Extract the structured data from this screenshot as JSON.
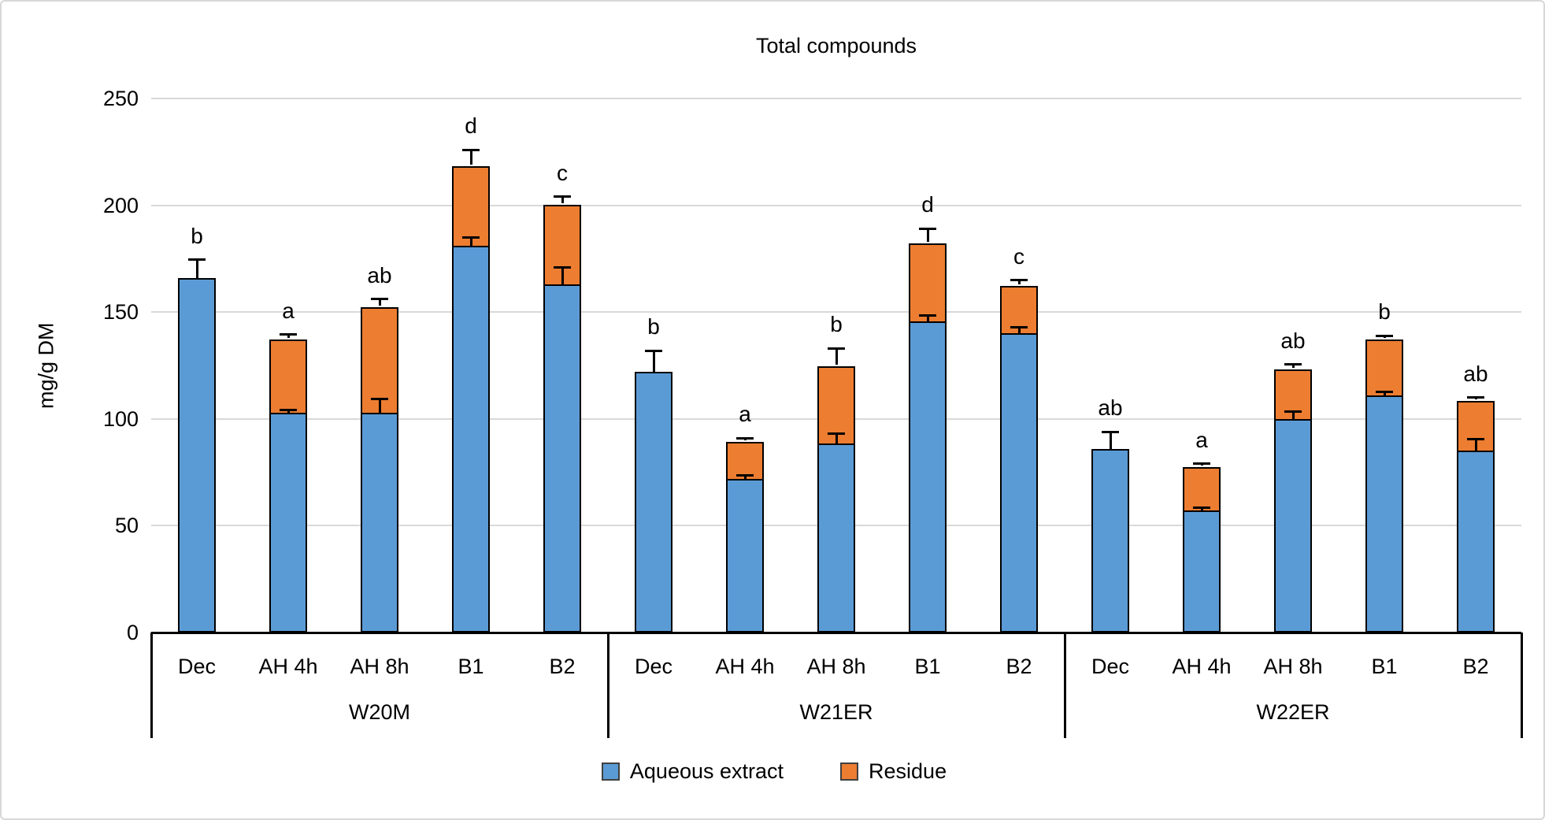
{
  "chart_data": {
    "type": "bar",
    "stacked": true,
    "title": "Total compounds",
    "ylabel": "mg/g DM",
    "ylim": [
      0,
      250
    ],
    "yticks": [
      0,
      50,
      100,
      150,
      200,
      250
    ],
    "grid": true,
    "legend_position": "bottom",
    "series_names": [
      "Aqueous extract",
      "Residue"
    ],
    "colors": {
      "aqueous_extract": "#5B9BD5",
      "residue": "#ED7D31",
      "gridline": "#D9D9D9",
      "axis": "#000000"
    },
    "groups": [
      {
        "label": "W20M",
        "bars": [
          {
            "label": "Dec",
            "letter": "b",
            "aqueous_extract": 166,
            "residue": 0,
            "aqueous_err": 8.5,
            "residue_err": null
          },
          {
            "label": "AH 4h",
            "letter": "a",
            "aqueous_extract": 103,
            "residue": 35,
            "aqueous_err": 1,
            "residue_err": 1.5
          },
          {
            "label": "AH 8h",
            "letter": "ab",
            "aqueous_extract": 103,
            "residue": 50,
            "aqueous_err": 6.5,
            "residue_err": 3
          },
          {
            "label": "B1",
            "letter": "d",
            "aqueous_extract": 181,
            "residue": 38,
            "aqueous_err": 4,
            "residue_err": 7
          },
          {
            "label": "B2",
            "letter": "c",
            "aqueous_extract": 163,
            "residue": 38,
            "aqueous_err": 8,
            "residue_err": 3
          }
        ]
      },
      {
        "label": "W21ER",
        "bars": [
          {
            "label": "Dec",
            "letter": "b",
            "aqueous_extract": 122,
            "residue": 0,
            "aqueous_err": 10,
            "residue_err": null
          },
          {
            "label": "AH 4h",
            "letter": "a",
            "aqueous_extract": 72,
            "residue": 18,
            "aqueous_err": 1.5,
            "residue_err": 1
          },
          {
            "label": "AH 8h",
            "letter": "b",
            "aqueous_extract": 88.5,
            "residue": 37,
            "aqueous_err": 4.5,
            "residue_err": 7.5
          },
          {
            "label": "B1",
            "letter": "d",
            "aqueous_extract": 145.5,
            "residue": 37.5,
            "aqueous_err": 3,
            "residue_err": 6
          },
          {
            "label": "B2",
            "letter": "c",
            "aqueous_extract": 140,
            "residue": 23,
            "aqueous_err": 3,
            "residue_err": 2
          }
        ]
      },
      {
        "label": "W22ER",
        "bars": [
          {
            "label": "Dec",
            "letter": "ab",
            "aqueous_extract": 86,
            "residue": 0,
            "aqueous_err": 8,
            "residue_err": null
          },
          {
            "label": "AH 4h",
            "letter": "a",
            "aqueous_extract": 57,
            "residue": 21,
            "aqueous_err": 1.5,
            "residue_err": 1
          },
          {
            "label": "AH 8h",
            "letter": "ab",
            "aqueous_extract": 100,
            "residue": 24,
            "aqueous_err": 3.5,
            "residue_err": 1.5
          },
          {
            "label": "B1",
            "letter": "b",
            "aqueous_extract": 111,
            "residue": 27,
            "aqueous_err": 1.5,
            "residue_err": 1
          },
          {
            "label": "B2",
            "letter": "ab",
            "aqueous_extract": 85,
            "residue": 24,
            "aqueous_err": 5.5,
            "residue_err": 1
          }
        ]
      }
    ]
  }
}
